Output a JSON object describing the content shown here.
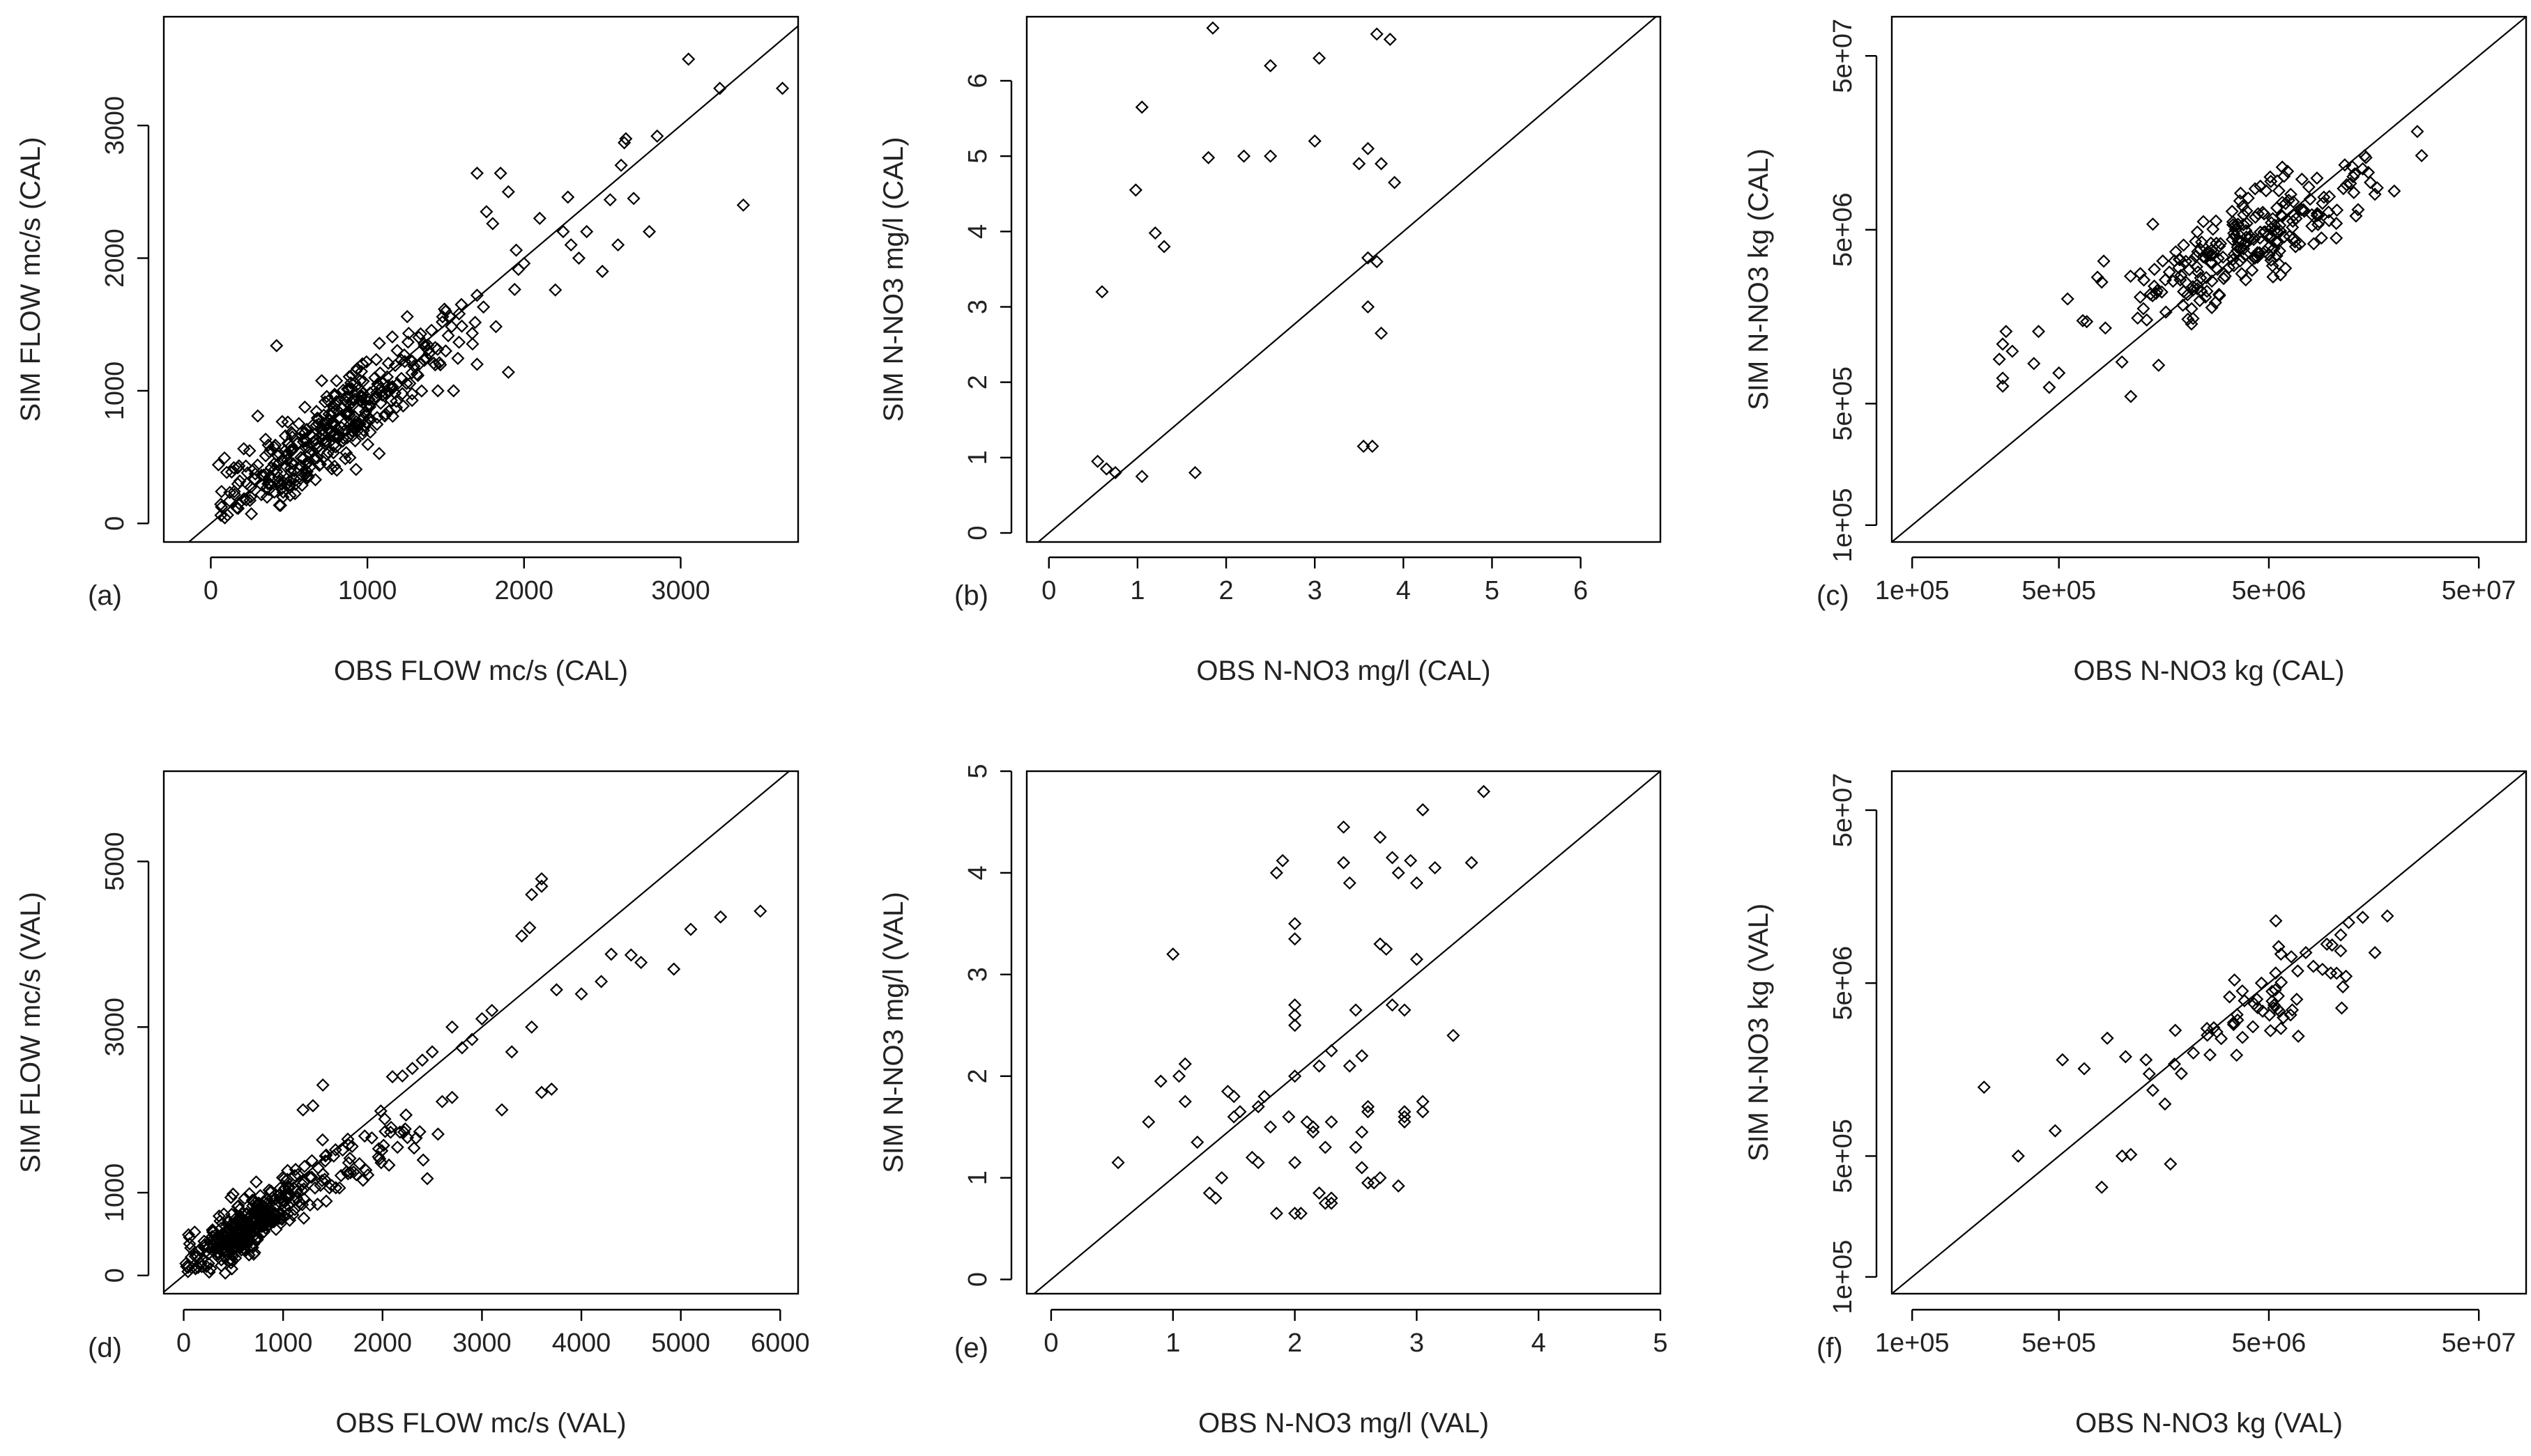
{
  "figure": {
    "background": "#ffffff",
    "foreground": "#000000"
  },
  "chart_data": [
    {
      "panel_label": "(a)",
      "type": "scatter",
      "scale": "linear",
      "xlabel": "OBS FLOW mc/s (CAL)",
      "ylabel": "SIM FLOW mc/s (CAL)",
      "xlim": [
        -300,
        3750
      ],
      "ylim": [
        -140,
        3820
      ],
      "xticks": [
        0,
        1000,
        2000,
        3000
      ],
      "xticklabels": [
        "0",
        "1000",
        "2000",
        "3000"
      ],
      "yticks": [
        0,
        1000,
        2000,
        3000
      ],
      "yticklabels": [
        "0",
        "1000",
        "2000",
        "3000"
      ],
      "reference_line": "1:1",
      "cluster": [
        {
          "cx": 600,
          "cy": 560,
          "sx": 330,
          "sy": 290,
          "n": 300
        },
        {
          "cx": 1200,
          "cy": 1150,
          "sx": 300,
          "sy": 260,
          "n": 90
        }
      ],
      "points": [
        [
          3050,
          3500
        ],
        [
          3250,
          3280
        ],
        [
          3650,
          3280
        ],
        [
          2850,
          2920
        ],
        [
          2650,
          2900
        ],
        [
          2640,
          2870
        ],
        [
          2620,
          2700
        ],
        [
          2550,
          2440
        ],
        [
          2700,
          2450
        ],
        [
          2280,
          2460
        ],
        [
          2250,
          2200
        ],
        [
          2300,
          2100
        ],
        [
          2400,
          2200
        ],
        [
          2350,
          2000
        ],
        [
          2500,
          1900
        ],
        [
          2600,
          2100
        ],
        [
          2800,
          2200
        ],
        [
          3400,
          2400
        ],
        [
          2200,
          1760
        ],
        [
          1700,
          2640
        ],
        [
          1850,
          2640
        ],
        [
          1900,
          2500
        ],
        [
          1760,
          2350
        ],
        [
          1800,
          2260
        ],
        [
          1950,
          2060
        ],
        [
          2000,
          1960
        ],
        [
          2100,
          2300
        ],
        [
          1900,
          1140
        ],
        [
          1700,
          1720
        ],
        [
          1600,
          1650
        ],
        [
          1500,
          1600
        ],
        [
          1500,
          1300
        ],
        [
          1450,
          1000
        ],
        [
          1550,
          1000
        ],
        [
          1700,
          1200
        ],
        [
          420,
          1340
        ],
        [
          300,
          810
        ],
        [
          180,
          150
        ],
        [
          230,
          300
        ],
        [
          120,
          170
        ],
        [
          150,
          240
        ]
      ]
    },
    {
      "panel_label": "(b)",
      "type": "scatter",
      "scale": "linear",
      "xlabel": "OBS N-NO3 mg/l (CAL)",
      "ylabel": "SIM N-NO3 mg/l (CAL)",
      "xlim": [
        -0.25,
        6.9
      ],
      "ylim": [
        -0.12,
        6.85
      ],
      "xticks": [
        0,
        1,
        2,
        3,
        4,
        5,
        6
      ],
      "xticklabels": [
        "0",
        "1",
        "2",
        "3",
        "4",
        "5",
        "6"
      ],
      "yticks": [
        0,
        1,
        2,
        3,
        4,
        5,
        6
      ],
      "yticklabels": [
        "0",
        "1",
        "2",
        "3",
        "4",
        "5",
        "6"
      ],
      "reference_line": "1:1",
      "cluster": [
        {
          "cx": 2.4,
          "cy": 2.3,
          "sx": 0.62,
          "sy": 0.95,
          "n": 210
        }
      ],
      "points": [
        [
          1.85,
          6.7
        ],
        [
          3.7,
          6.62
        ],
        [
          3.85,
          6.55
        ],
        [
          2.5,
          6.2
        ],
        [
          3.05,
          6.3
        ],
        [
          1.05,
          5.65
        ],
        [
          3.0,
          5.2
        ],
        [
          2.2,
          5.0
        ],
        [
          2.5,
          5.0
        ],
        [
          1.8,
          4.98
        ],
        [
          3.75,
          4.9
        ],
        [
          3.5,
          4.9
        ],
        [
          3.6,
          5.1
        ],
        [
          3.9,
          4.65
        ],
        [
          0.98,
          4.55
        ],
        [
          1.2,
          3.98
        ],
        [
          1.3,
          3.8
        ],
        [
          3.6,
          3.65
        ],
        [
          3.7,
          3.6
        ],
        [
          0.6,
          3.2
        ],
        [
          0.55,
          0.95
        ],
        [
          0.65,
          0.85
        ],
        [
          0.75,
          0.8
        ],
        [
          3.55,
          1.15
        ],
        [
          3.65,
          1.15
        ],
        [
          3.75,
          2.65
        ],
        [
          3.6,
          3.0
        ],
        [
          1.65,
          0.8
        ],
        [
          1.05,
          0.75
        ]
      ]
    },
    {
      "panel_label": "(c)",
      "type": "scatter",
      "scale": "log10",
      "xlabel": "OBS N-NO3 kg (CAL)",
      "ylabel": "SIM N-NO3 kg (CAL)",
      "xlim": [
        80000,
        84000000
      ],
      "ylim": [
        80000,
        84000000
      ],
      "xticks": [
        100000,
        500000,
        5000000,
        50000000
      ],
      "xticklabels": [
        "1e+05",
        "5e+05",
        "5e+06",
        "5e+07"
      ],
      "yticks": [
        100000,
        500000,
        5000000,
        50000000
      ],
      "yticklabels": [
        "1e+05",
        "5e+05",
        "5e+06",
        "5e+07"
      ],
      "reference_line": "1:1",
      "cluster": [
        {
          "cx": 3800000,
          "cy": 4200000,
          "sx": 0.27,
          "sy": 0.22,
          "n": 230
        }
      ],
      "points": [
        [
          270000,
          700000
        ],
        [
          270000,
          1100000
        ],
        [
          280000,
          1300000
        ],
        [
          260000,
          900000
        ],
        [
          300000,
          1000000
        ],
        [
          270000,
          630000
        ],
        [
          380000,
          850000
        ],
        [
          400000,
          1300000
        ],
        [
          450000,
          620000
        ],
        [
          500000,
          750000
        ],
        [
          550000,
          2000000
        ],
        [
          650000,
          1500000
        ],
        [
          800000,
          2500000
        ],
        [
          1100000,
          550000
        ],
        [
          4300000,
          8600000
        ],
        [
          8500000,
          6200000
        ],
        [
          9000000,
          7100000
        ],
        [
          11500000,
          11800000
        ],
        [
          12500000,
          11500000
        ],
        [
          14500000,
          13000000
        ],
        [
          14000000,
          11200000
        ],
        [
          16000000,
          8000000
        ],
        [
          13000000,
          6000000
        ],
        [
          6000000,
          3000000
        ]
      ]
    },
    {
      "panel_label": "(d)",
      "type": "scatter",
      "scale": "linear",
      "xlabel": "OBS FLOW mc/s (VAL)",
      "ylabel": "SIM FLOW mc/s (VAL)",
      "xlim": [
        -200,
        6180
      ],
      "ylim": [
        -220,
        6090
      ],
      "xticks": [
        0,
        1000,
        2000,
        3000,
        4000,
        5000,
        6000
      ],
      "xticklabels": [
        "0",
        "1000",
        "2000",
        "3000",
        "4000",
        "5000",
        "6000"
      ],
      "yticks": [
        0,
        1000,
        3000,
        5000
      ],
      "yticklabels": [
        "0",
        "1000",
        "3000",
        "5000"
      ],
      "reference_line": "1:1",
      "cluster": [
        {
          "cx": 600,
          "cy": 550,
          "sx": 320,
          "sy": 300,
          "n": 340
        },
        {
          "cx": 1600,
          "cy": 1300,
          "sx": 500,
          "sy": 400,
          "n": 80
        }
      ],
      "points": [
        [
          5800,
          4400
        ],
        [
          5400,
          4330
        ],
        [
          5100,
          4180
        ],
        [
          4930,
          3700
        ],
        [
          4500,
          3870
        ],
        [
          4600,
          3780
        ],
        [
          4300,
          3880
        ],
        [
          4200,
          3550
        ],
        [
          4000,
          3400
        ],
        [
          3750,
          3450
        ],
        [
          3600,
          4790
        ],
        [
          3600,
          4700
        ],
        [
          3500,
          4600
        ],
        [
          3480,
          4200
        ],
        [
          3400,
          4100
        ],
        [
          3500,
          3000
        ],
        [
          3300,
          2700
        ],
        [
          3700,
          2250
        ],
        [
          3600,
          2210
        ],
        [
          3200,
          2000
        ],
        [
          3000,
          3100
        ],
        [
          3100,
          3200
        ],
        [
          2900,
          2850
        ],
        [
          2800,
          2750
        ],
        [
          2700,
          3000
        ],
        [
          2500,
          2700
        ],
        [
          2400,
          2600
        ],
        [
          2300,
          2500
        ],
        [
          2200,
          2410
        ],
        [
          2100,
          2400
        ],
        [
          2450,
          1170
        ],
        [
          1400,
          2300
        ],
        [
          1200,
          2000
        ],
        [
          1300,
          2050
        ],
        [
          2700,
          2150
        ],
        [
          2600,
          2100
        ]
      ]
    },
    {
      "panel_label": "(e)",
      "type": "scatter",
      "scale": "linear",
      "xlabel": "OBS N-NO3 mg/l (VAL)",
      "ylabel": "SIM N-NO3 mg/l (VAL)",
      "xlim": [
        -0.2,
        5.0
      ],
      "ylim": [
        -0.14,
        5.0
      ],
      "xticks": [
        0,
        1,
        2,
        3,
        4,
        5
      ],
      "xticklabels": [
        "0",
        "1",
        "2",
        "3",
        "4",
        "5"
      ],
      "yticks": [
        0,
        1,
        2,
        3,
        4,
        5
      ],
      "yticklabels": [
        "0",
        "1",
        "2",
        "3",
        "4",
        "5"
      ],
      "reference_line": "1:1",
      "points": [
        [
          0.55,
          1.15
        ],
        [
          0.8,
          1.55
        ],
        [
          1.0,
          3.2
        ],
        [
          0.9,
          1.95
        ],
        [
          1.05,
          2.0
        ],
        [
          1.1,
          2.12
        ],
        [
          1.1,
          1.75
        ],
        [
          1.2,
          1.35
        ],
        [
          1.3,
          0.85
        ],
        [
          1.35,
          0.8
        ],
        [
          1.4,
          1.0
        ],
        [
          1.45,
          1.85
        ],
        [
          1.5,
          1.8
        ],
        [
          1.5,
          1.6
        ],
        [
          1.55,
          1.65
        ],
        [
          1.65,
          1.2
        ],
        [
          1.7,
          1.15
        ],
        [
          1.7,
          1.7
        ],
        [
          1.8,
          1.5
        ],
        [
          1.85,
          0.65
        ],
        [
          1.85,
          4.0
        ],
        [
          1.9,
          4.12
        ],
        [
          1.95,
          1.6
        ],
        [
          2.0,
          3.5
        ],
        [
          2.0,
          3.35
        ],
        [
          2.0,
          2.7
        ],
        [
          2.0,
          2.6
        ],
        [
          2.0,
          2.5
        ],
        [
          2.0,
          2.0
        ],
        [
          2.0,
          1.15
        ],
        [
          2.0,
          0.65
        ],
        [
          2.05,
          0.65
        ],
        [
          2.1,
          1.55
        ],
        [
          2.15,
          1.45
        ],
        [
          2.2,
          0.85
        ],
        [
          2.25,
          1.3
        ],
        [
          2.25,
          0.75
        ],
        [
          2.3,
          0.8
        ],
        [
          2.3,
          0.75
        ],
        [
          2.3,
          1.55
        ],
        [
          2.4,
          4.45
        ],
        [
          2.4,
          4.1
        ],
        [
          2.45,
          3.9
        ],
        [
          2.5,
          2.65
        ],
        [
          2.55,
          2.2
        ],
        [
          2.55,
          1.45
        ],
        [
          2.55,
          1.1
        ],
        [
          2.6,
          1.65
        ],
        [
          2.6,
          1.7
        ],
        [
          2.7,
          4.35
        ],
        [
          2.7,
          3.3
        ],
        [
          2.7,
          1.0
        ],
        [
          2.75,
          3.25
        ],
        [
          2.8,
          2.7
        ],
        [
          2.8,
          4.15
        ],
        [
          2.85,
          4.0
        ],
        [
          2.9,
          2.65
        ],
        [
          2.9,
          1.65
        ],
        [
          2.9,
          1.6
        ],
        [
          2.9,
          1.55
        ],
        [
          2.95,
          4.12
        ],
        [
          3.0,
          3.9
        ],
        [
          3.0,
          3.15
        ],
        [
          3.05,
          4.62
        ],
        [
          3.05,
          1.65
        ],
        [
          3.05,
          1.75
        ],
        [
          3.15,
          4.05
        ],
        [
          3.3,
          2.4
        ],
        [
          3.45,
          4.1
        ],
        [
          3.55,
          4.8
        ],
        [
          2.2,
          2.1
        ],
        [
          2.3,
          2.25
        ],
        [
          2.45,
          2.1
        ],
        [
          1.75,
          1.8
        ],
        [
          2.15,
          1.5
        ],
        [
          2.5,
          1.3
        ],
        [
          2.65,
          0.95
        ],
        [
          2.85,
          0.92
        ],
        [
          2.6,
          0.95
        ]
      ]
    },
    {
      "panel_label": "(f)",
      "type": "scatter",
      "scale": "log10",
      "xlabel": "OBS N-NO3 kg (VAL)",
      "ylabel": "SIM N-NO3 kg (VAL)",
      "xlim": [
        80000,
        84000000
      ],
      "ylim": [
        80000,
        84000000
      ],
      "xticks": [
        100000,
        500000,
        5000000,
        50000000
      ],
      "xticklabels": [
        "1e+05",
        "5e+05",
        "5e+06",
        "5e+07"
      ],
      "yticks": [
        100000,
        500000,
        5000000,
        50000000
      ],
      "yticklabels": [
        "1e+05",
        "5e+05",
        "5e+06",
        "5e+07"
      ],
      "reference_line": "1:1",
      "cluster": [
        {
          "cx": 4500000,
          "cy": 3900000,
          "sx": 0.28,
          "sy": 0.24,
          "n": 60
        }
      ],
      "points": [
        [
          220000,
          1250000
        ],
        [
          320000,
          500000
        ],
        [
          480000,
          700000
        ],
        [
          520000,
          1800000
        ],
        [
          660000,
          1600000
        ],
        [
          850000,
          2400000
        ],
        [
          800000,
          330000
        ],
        [
          1000000,
          500000
        ],
        [
          1100000,
          510000
        ],
        [
          1300000,
          1800000
        ],
        [
          1700000,
          450000
        ],
        [
          1600000,
          1000000
        ],
        [
          1400000,
          1200000
        ],
        [
          10000000,
          8300000
        ],
        [
          11000000,
          9500000
        ],
        [
          12000000,
          11200000
        ],
        [
          14000000,
          12000000
        ],
        [
          16000000,
          7500000
        ],
        [
          9000000,
          6000000
        ],
        [
          7500000,
          7500000
        ]
      ]
    }
  ]
}
